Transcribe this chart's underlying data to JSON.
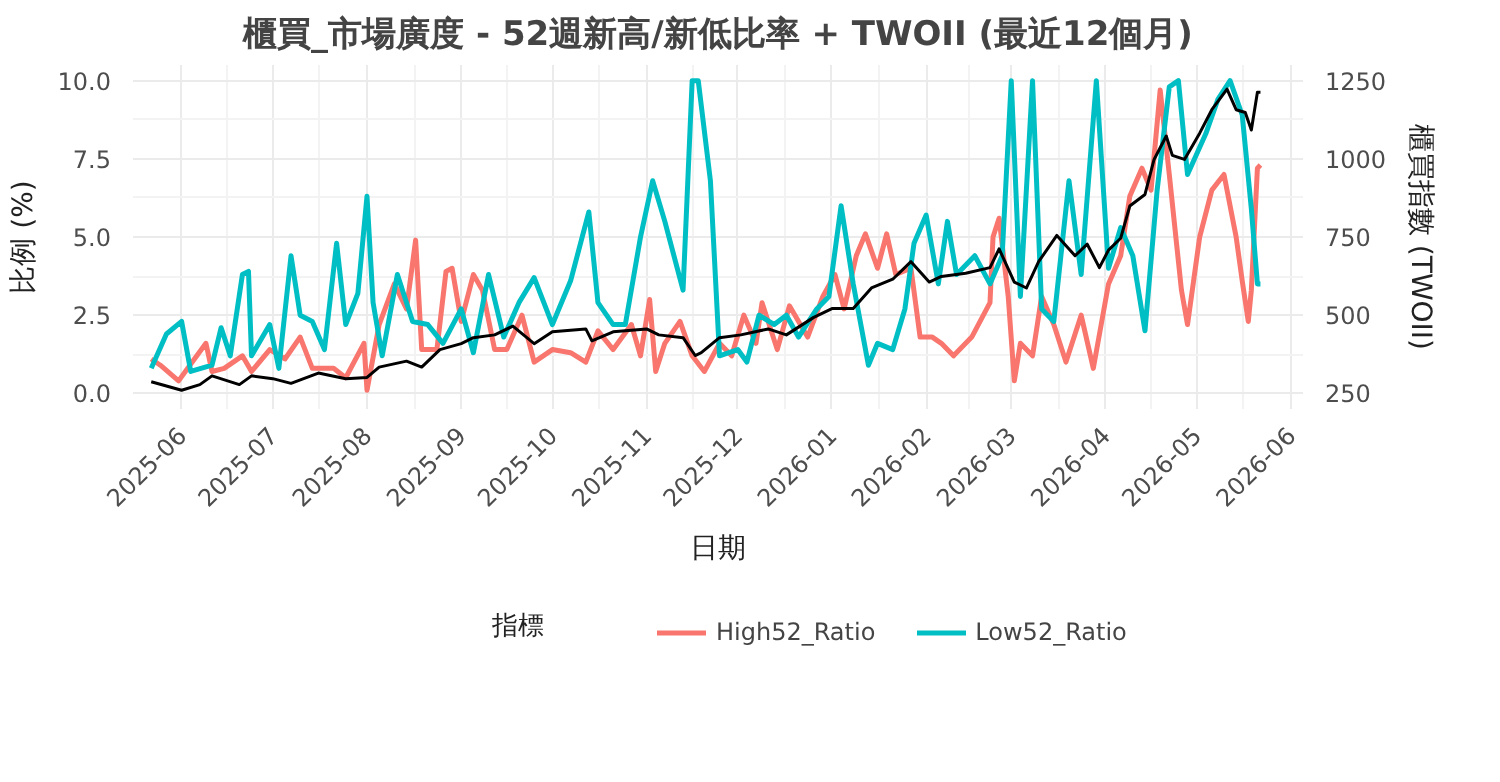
{
  "chart_data": {
    "type": "line",
    "title": "櫃買_市場廣度 - 52週新高/新低比率 + TWOII (最近12個月)",
    "xlabel": "日期",
    "ylabel": "比例 (%)",
    "y2label": "櫃買指數 (TWOII)",
    "legend_title": "指標",
    "legend": "bottom",
    "grid": true,
    "xlim": [
      "2025-05-16",
      "2026-06-05"
    ],
    "xticks": [
      "2025-06",
      "2025-07",
      "2025-08",
      "2025-09",
      "2025-10",
      "2025-11",
      "2025-12",
      "2026-01",
      "2026-02",
      "2026-03",
      "2026-04",
      "2026-05",
      "2026-06"
    ],
    "ylim": [
      -0.5,
      10.5
    ],
    "yticks": [
      {
        "value": 0,
        "label": "0.0"
      },
      2.5,
      {
        "value": 5,
        "label": "5.0"
      },
      7.5,
      {
        "value": 10,
        "label": "10.0"
      }
    ],
    "y2lim": [
      200,
      1300
    ],
    "y2ticks": [
      250,
      500,
      750,
      1000,
      1250
    ],
    "series": [
      {
        "name": "High52_Ratio",
        "color": "#f8766d",
        "x": [
          "2025-05-22",
          "2025-05-25",
          "2025-05-31",
          "2025-06-03",
          "2025-06-09",
          "2025-06-11",
          "2025-06-15",
          "2025-06-21",
          "2025-06-24",
          "2025-06-30",
          "2025-07-05",
          "2025-07-10",
          "2025-07-14",
          "2025-07-21",
          "2025-07-25",
          "2025-07-31",
          "2025-08-01",
          "2025-08-05",
          "2025-08-10",
          "2025-08-14",
          "2025-08-17",
          "2025-08-19",
          "2025-08-24",
          "2025-08-27",
          "2025-08-29",
          "2025-09-01",
          "2025-09-05",
          "2025-09-08",
          "2025-09-12",
          "2025-09-16",
          "2025-09-21",
          "2025-09-25",
          "2025-10-01",
          "2025-10-07",
          "2025-10-12",
          "2025-10-16",
          "2025-10-21",
          "2025-10-27",
          "2025-10-30",
          "2025-11-02",
          "2025-11-04",
          "2025-11-07",
          "2025-11-12",
          "2025-11-16",
          "2025-11-20",
          "2025-11-25",
          "2025-11-29",
          "2025-12-03",
          "2025-12-07",
          "2025-12-09",
          "2025-12-14",
          "2025-12-18",
          "2025-12-24",
          "2025-12-29",
          "2026-01-02",
          "2026-01-05",
          "2026-01-09",
          "2026-01-12",
          "2026-01-16",
          "2026-01-19",
          "2026-01-22",
          "2026-01-27",
          "2026-01-30",
          "2026-02-03",
          "2026-02-06",
          "2026-02-10",
          "2026-02-16",
          "2026-02-22",
          "2026-02-23",
          "2026-02-25",
          "2026-02-28",
          "2026-03-02",
          "2026-03-04",
          "2026-03-08",
          "2026-03-11",
          "2026-03-15",
          "2026-03-19",
          "2026-03-24",
          "2026-03-28",
          "2026-04-02",
          "2026-04-06",
          "2026-04-09",
          "2026-04-13",
          "2026-04-16",
          "2026-04-19",
          "2026-04-22",
          "2026-04-26",
          "2026-04-28",
          "2026-05-02",
          "2026-05-06",
          "2026-05-10",
          "2026-05-14",
          "2026-05-16",
          "2026-05-18",
          "2026-05-19",
          "2026-05-21",
          "2026-05-22"
        ],
        "values": [
          1.1,
          0.9,
          0.4,
          0.8,
          1.6,
          0.7,
          0.8,
          1.2,
          0.7,
          1.4,
          1.1,
          1.8,
          0.8,
          0.8,
          0.5,
          1.6,
          0.1,
          2.2,
          3.5,
          2.7,
          4.9,
          1.4,
          1.4,
          3.9,
          4.0,
          2.3,
          3.8,
          3.3,
          1.4,
          1.4,
          2.5,
          1.0,
          1.4,
          1.3,
          1.0,
          2.0,
          1.4,
          2.2,
          1.2,
          3.0,
          0.7,
          1.6,
          2.3,
          1.2,
          0.7,
          1.6,
          1.2,
          2.5,
          1.6,
          2.9,
          1.4,
          2.8,
          1.8,
          3.1,
          3.8,
          2.7,
          4.4,
          5.1,
          4.0,
          5.1,
          3.8,
          4.0,
          1.8,
          1.8,
          1.6,
          1.2,
          1.8,
          2.9,
          5.0,
          5.6,
          3.1,
          0.4,
          1.6,
          1.2,
          3.1,
          2.2,
          1.0,
          2.5,
          0.8,
          3.5,
          4.4,
          6.3,
          7.2,
          6.5,
          9.7,
          7.0,
          3.3,
          2.2,
          5.0,
          6.5,
          7.0,
          5.0,
          3.6,
          2.3,
          3.3,
          7.2,
          7.3
        ]
      },
      {
        "name": "Low52_Ratio",
        "color": "#00bfc4",
        "x": [
          "2025-05-22",
          "2025-05-27",
          "2025-06-01",
          "2025-06-04",
          "2025-06-11",
          "2025-06-14",
          "2025-06-17",
          "2025-06-21",
          "2025-06-23",
          "2025-06-24",
          "2025-06-30",
          "2025-07-03",
          "2025-07-07",
          "2025-07-10",
          "2025-07-14",
          "2025-07-18",
          "2025-07-22",
          "2025-07-25",
          "2025-07-29",
          "2025-08-01",
          "2025-08-03",
          "2025-08-06",
          "2025-08-11",
          "2025-08-16",
          "2025-08-21",
          "2025-08-26",
          "2025-09-01",
          "2025-09-05",
          "2025-09-10",
          "2025-09-15",
          "2025-09-20",
          "2025-09-25",
          "2025-10-01",
          "2025-10-07",
          "2025-10-13",
          "2025-10-16",
          "2025-10-21",
          "2025-10-25",
          "2025-10-30",
          "2025-11-03",
          "2025-11-07",
          "2025-11-13",
          "2025-11-16",
          "2025-11-18",
          "2025-11-22",
          "2025-11-25",
          "2025-12-01",
          "2025-12-04",
          "2025-12-08",
          "2025-12-13",
          "2025-12-17",
          "2025-12-21",
          "2025-12-27",
          "2025-12-31",
          "2026-01-04",
          "2026-01-08",
          "2026-01-13",
          "2026-01-16",
          "2026-01-21",
          "2026-01-25",
          "2026-01-28",
          "2026-02-01",
          "2026-02-05",
          "2026-02-08",
          "2026-02-11",
          "2026-02-17",
          "2026-02-22",
          "2026-02-26",
          "2026-03-01",
          "2026-03-04",
          "2026-03-08",
          "2026-03-11",
          "2026-03-15",
          "2026-03-20",
          "2026-03-24",
          "2026-03-29",
          "2026-04-02",
          "2026-04-06",
          "2026-04-10",
          "2026-04-14",
          "2026-04-18",
          "2026-04-22",
          "2026-04-25",
          "2026-04-28",
          "2026-05-04",
          "2026-05-08",
          "2026-05-12",
          "2026-05-16",
          "2026-05-19",
          "2026-05-21",
          "2026-05-22"
        ],
        "values": [
          0.8,
          1.9,
          2.3,
          0.7,
          0.9,
          2.1,
          1.2,
          3.8,
          3.9,
          1.2,
          2.2,
          0.8,
          4.4,
          2.5,
          2.3,
          1.4,
          4.8,
          2.2,
          3.2,
          6.3,
          2.9,
          1.2,
          3.8,
          2.3,
          2.2,
          1.6,
          2.7,
          1.3,
          3.8,
          1.8,
          2.9,
          3.7,
          2.2,
          3.6,
          5.8,
          2.9,
          2.2,
          2.2,
          5.0,
          6.8,
          5.5,
          3.3,
          10.0,
          10.0,
          6.8,
          1.2,
          1.4,
          1.0,
          2.5,
          2.2,
          2.5,
          1.8,
          2.7,
          3.1,
          6.0,
          3.5,
          0.9,
          1.6,
          1.4,
          2.7,
          4.8,
          5.7,
          3.5,
          5.5,
          3.8,
          4.4,
          3.5,
          4.4,
          10.0,
          3.1,
          10.0,
          2.7,
          2.3,
          6.8,
          3.8,
          10.0,
          4.0,
          5.3,
          4.4,
          2.0,
          6.5,
          9.8,
          10.0,
          7.0,
          8.3,
          9.4,
          10.0,
          8.9,
          5.9,
          3.5,
          3.5
        ]
      },
      {
        "color": "#000000",
        "axis": "y2",
        "x": [
          "2025-05-22",
          "2025-06-01",
          "2025-06-07",
          "2025-06-11",
          "2025-06-20",
          "2025-06-24",
          "2025-07-01",
          "2025-07-07",
          "2025-07-16",
          "2025-07-25",
          "2025-08-01",
          "2025-08-05",
          "2025-08-14",
          "2025-08-19",
          "2025-08-25",
          "2025-09-01",
          "2025-09-05",
          "2025-09-12",
          "2025-09-18",
          "2025-09-25",
          "2025-10-01",
          "2025-10-12",
          "2025-10-14",
          "2025-10-21",
          "2025-11-01",
          "2025-11-05",
          "2025-11-13",
          "2025-11-17",
          "2025-11-19",
          "2025-11-25",
          "2025-12-02",
          "2025-12-11",
          "2025-12-17",
          "2025-12-26",
          "2026-01-01",
          "2026-01-08",
          "2026-01-14",
          "2026-01-21",
          "2026-01-27",
          "2026-02-02",
          "2026-02-06",
          "2026-02-14",
          "2026-02-22",
          "2026-02-25",
          "2026-03-02",
          "2026-03-06",
          "2026-03-10",
          "2026-03-16",
          "2026-03-22",
          "2026-03-26",
          "2026-03-30",
          "2026-04-02",
          "2026-04-06",
          "2026-04-09",
          "2026-04-14",
          "2026-04-17",
          "2026-04-21",
          "2026-04-23",
          "2026-04-27",
          "2026-05-02",
          "2026-05-06",
          "2026-05-11",
          "2026-05-14",
          "2026-05-17",
          "2026-05-19",
          "2026-05-21",
          "2026-05-22"
        ],
        "values": [
          287,
          260,
          278,
          306,
          278,
          306,
          297,
          282,
          315,
          297,
          301,
          334,
          353,
          334,
          390,
          409,
          428,
          437,
          465,
          409,
          447,
          456,
          418,
          447,
          456,
          437,
          428,
          371,
          380,
          428,
          437,
          456,
          437,
          493,
          521,
          521,
          587,
          615,
          671,
          606,
          624,
          634,
          652,
          712,
          606,
          587,
          671,
          755,
          690,
          727,
          652,
          708,
          746,
          849,
          886,
          998,
          1073,
          1011,
          998,
          1082,
          1157,
          1223,
          1157,
          1148,
          1092,
          1213,
          1213
        ]
      }
    ]
  }
}
